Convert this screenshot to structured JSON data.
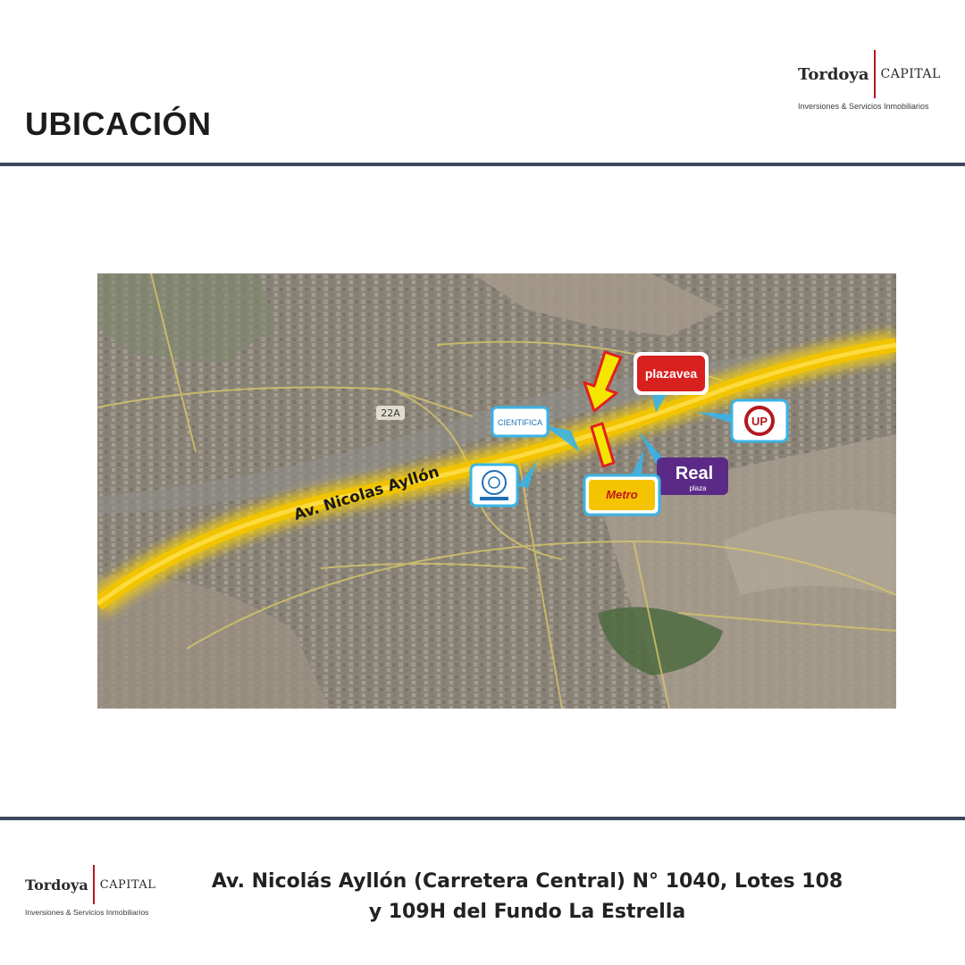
{
  "header": {
    "title": "UBICACIÓN"
  },
  "logo": {
    "brand": "Tordoya",
    "capital": "CAPITAL",
    "tagline": "Inversiones & Servicios Inmobiliarios"
  },
  "map": {
    "road_label": "Av. Nicolas Ayllón",
    "route_badge": "22A",
    "markers": [
      {
        "name": "plazavea",
        "label": "plazavea",
        "color": "#d8201e"
      },
      {
        "name": "cientifica",
        "label": "CIENTIFICA",
        "color": "#1e6fb5"
      },
      {
        "name": "up",
        "label": "UP",
        "color": "#b3191f"
      },
      {
        "name": "real-plaza",
        "label": "Real",
        "sublabel": "plaza",
        "color": "#5b2a86"
      },
      {
        "name": "metro",
        "label": "Metro",
        "color": "#f4c400"
      },
      {
        "name": "seal",
        "label": "",
        "color": "#1e6fb5"
      }
    ]
  },
  "footer": {
    "address_line1": "Av. Nicolás Ayllón (Carretera Central) N° 1040, Lotes 108",
    "address_line2": "y 109H del Fundo La Estrella"
  }
}
